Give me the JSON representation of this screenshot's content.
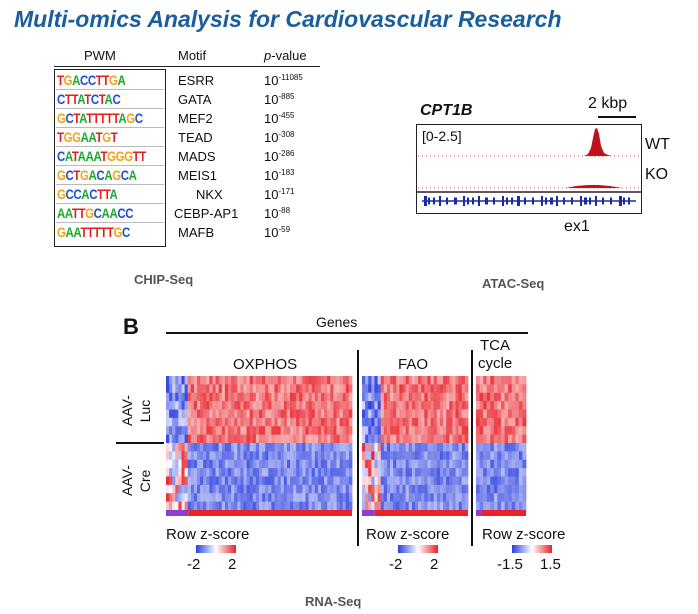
{
  "title": "Multi-omics Analysis for Cardiovascular Research",
  "chip": {
    "headers": {
      "pwm": "PWM",
      "motif": "Motif",
      "pvalue_italic": "p",
      "pvalue_rest": "-value"
    },
    "rows": [
      {
        "logo": "TGACCTTGA",
        "motif": "ESRR",
        "p_base": "10",
        "p_exp": "-11085"
      },
      {
        "logo": "CTTATCTAC",
        "motif": "GATA",
        "p_base": "10",
        "p_exp": "-885"
      },
      {
        "logo": "GCTATTTTTAGC",
        "motif": "MEF2",
        "p_base": "10",
        "p_exp": "-455"
      },
      {
        "logo": "TGGAATGT",
        "motif": "TEAD",
        "p_base": "10",
        "p_exp": "-308"
      },
      {
        "logo": "CATAAATGGGTT",
        "motif": "MADS",
        "p_base": "10",
        "p_exp": "-286"
      },
      {
        "logo": "GCTGACAGCA",
        "motif": "MEIS1",
        "p_base": "10",
        "p_exp": "-183"
      },
      {
        "logo": "GCCACTTA",
        "motif": "NKX",
        "p_base": "10",
        "p_exp": "-171"
      },
      {
        "logo": "AATTGCAACC",
        "motif": "CEBP-AP1",
        "p_base": "10",
        "p_exp": "-88"
      },
      {
        "logo": "GAATTTTTGC",
        "motif": "MAFB",
        "p_base": "10",
        "p_exp": "-59"
      }
    ],
    "caption": "CHIP-Seq"
  },
  "atac": {
    "gene": "CPT1B",
    "scale": "2 kbp",
    "range": "[0-2.5]",
    "tracks": [
      "WT",
      "KO"
    ],
    "exon_label": "ex1",
    "caption": "ATAC-Seq"
  },
  "rnaseq": {
    "panel_letter": "B",
    "genes_label": "Genes",
    "groups": [
      "OXPHOS",
      "FAO"
    ],
    "tca_line1": "TCA",
    "tca_line2": "cycle",
    "row_groups": [
      {
        "line1": "AAV-",
        "line2": "Luc"
      },
      {
        "line1": "AAV-",
        "line2": "Cre"
      }
    ],
    "legends": [
      {
        "title": "Row z-score",
        "min": "-2",
        "max": "2"
      },
      {
        "title": "Row z-score",
        "min": "-2",
        "max": "2"
      },
      {
        "title": "Row z-score",
        "min": "-1.5",
        "max": "1.5"
      }
    ],
    "caption": "RNA-Seq"
  },
  "colors": {
    "title": "#1b5e9e",
    "heat_high": "#e8232a",
    "heat_low": "#2b3fe0",
    "peak": "#c0101a",
    "gene_model": "#1a2aa0"
  }
}
